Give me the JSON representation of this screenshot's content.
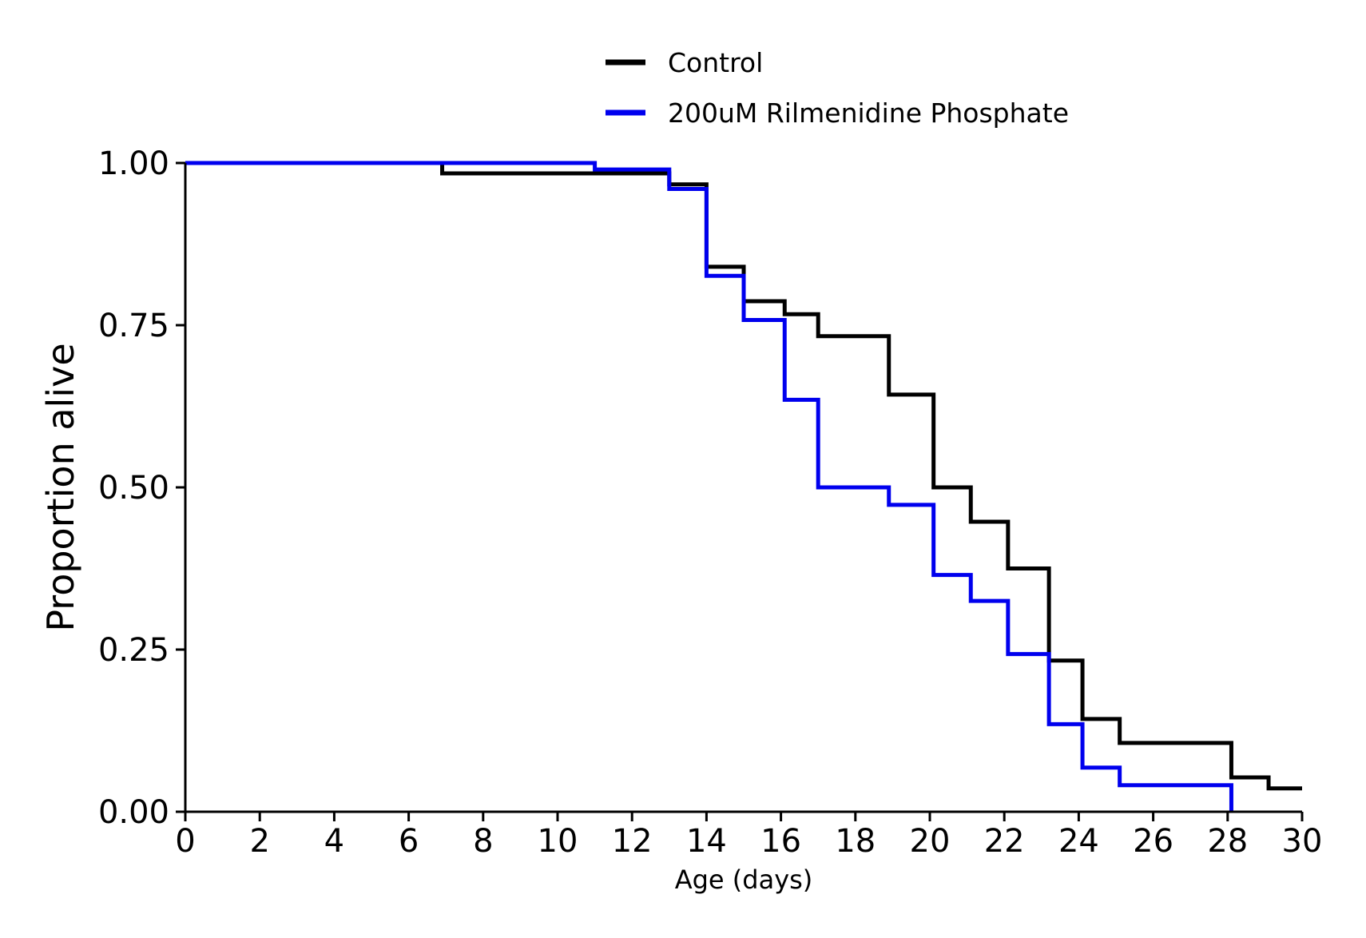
{
  "chart_data": {
    "type": "line",
    "title": "",
    "xlabel": "Age (days)",
    "ylabel": "Proportion alive",
    "xlim": [
      0,
      30
    ],
    "ylim": [
      0,
      1
    ],
    "grid": false,
    "legend_position": "top-center",
    "x_ticks": [
      "0",
      "2",
      "4",
      "6",
      "8",
      "10",
      "12",
      "14",
      "16",
      "18",
      "20",
      "22",
      "24",
      "26",
      "28",
      "30"
    ],
    "y_ticks": [
      "0.00",
      "0.25",
      "0.50",
      "0.75",
      "1.00"
    ],
    "series": [
      {
        "name": "Control",
        "color": "#000000",
        "step": "post",
        "x": [
          0,
          6.9,
          13,
          14,
          15,
          16.1,
          17,
          18.9,
          20.1,
          21.1,
          22.1,
          23.2,
          24.1,
          25.1,
          28.1,
          29.1,
          30
        ],
        "y": [
          1.0,
          0.984,
          0.967,
          0.84,
          0.787,
          0.767,
          0.733,
          0.643,
          0.5,
          0.447,
          0.375,
          0.233,
          0.143,
          0.106,
          0.053,
          0.036,
          0.036
        ]
      },
      {
        "name": "200uM Rilmenidine Phosphate",
        "color": "#0000ee",
        "step": "post",
        "x": [
          0,
          11,
          13,
          14,
          15,
          16.1,
          17,
          18.9,
          20.1,
          21.1,
          22.1,
          23.2,
          24.1,
          25.1,
          28.1
        ],
        "y": [
          1.0,
          0.99,
          0.96,
          0.826,
          0.758,
          0.635,
          0.5,
          0.473,
          0.365,
          0.325,
          0.243,
          0.135,
          0.068,
          0.041,
          0.0
        ]
      }
    ]
  }
}
